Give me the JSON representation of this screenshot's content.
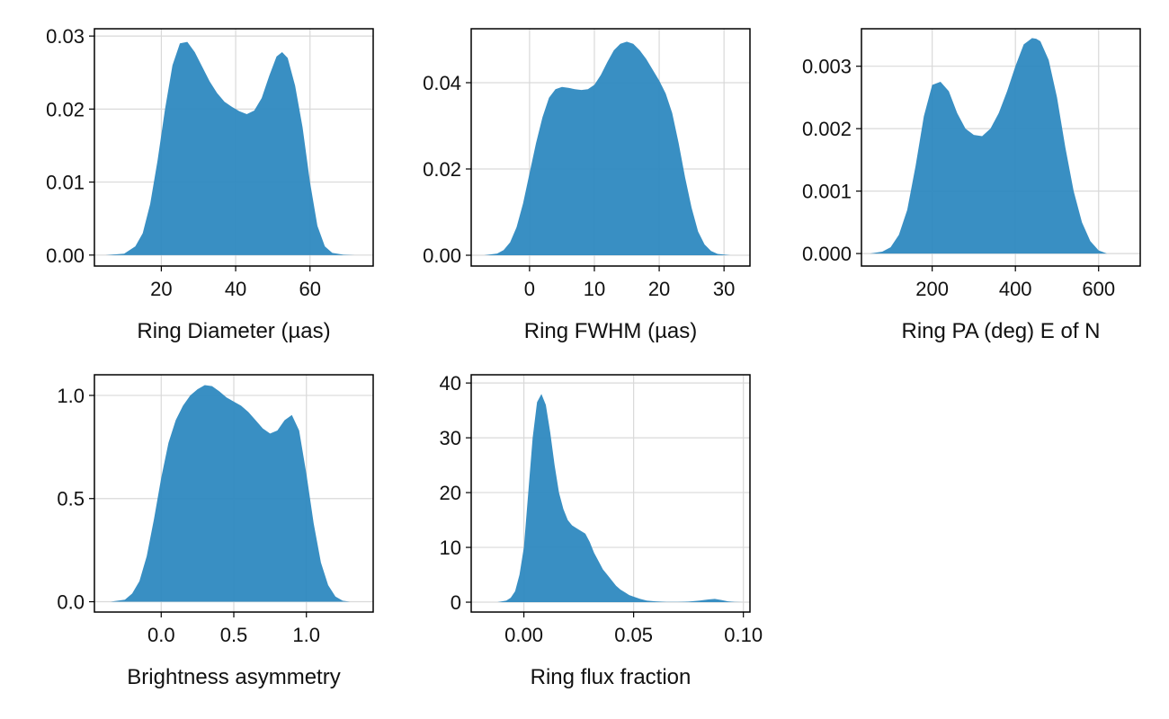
{
  "figure": {
    "fill_color": "#2a86be",
    "grid_color": "#d9d9d9"
  },
  "chart_data": [
    {
      "type": "area",
      "xlabel": "Ring Diameter (µas)",
      "xlim": [
        2,
        77
      ],
      "ylim": [
        -0.0015,
        0.031
      ],
      "xticks": [
        20,
        40,
        60
      ],
      "xtick_labels": [
        "20",
        "40",
        "60"
      ],
      "yticks": [
        0,
        0.01,
        0.02,
        0.03
      ],
      "ytick_labels": [
        "0.00",
        "0.01",
        "0.02",
        "0.03"
      ],
      "grid": true,
      "x": [
        5,
        10,
        13,
        15,
        17,
        19,
        21,
        23,
        25,
        27,
        29,
        31,
        33,
        35,
        37,
        39,
        41,
        43,
        45,
        47,
        49,
        51,
        52.5,
        54,
        56,
        58,
        60,
        62,
        64,
        66,
        69,
        72,
        75
      ],
      "y": [
        0,
        0.0002,
        0.0012,
        0.003,
        0.007,
        0.013,
        0.02,
        0.026,
        0.029,
        0.0292,
        0.0278,
        0.0258,
        0.0238,
        0.0222,
        0.021,
        0.0203,
        0.0197,
        0.0193,
        0.0198,
        0.0215,
        0.0245,
        0.0272,
        0.0278,
        0.027,
        0.0232,
        0.0175,
        0.01,
        0.004,
        0.0012,
        0.0003,
        5e-05,
        0,
        0
      ]
    },
    {
      "type": "area",
      "xlabel": "Ring FWHM (µas)",
      "xlim": [
        -9,
        34
      ],
      "ylim": [
        -0.0025,
        0.0525
      ],
      "xticks": [
        0,
        10,
        20,
        30
      ],
      "xtick_labels": [
        "0",
        "10",
        "20",
        "30"
      ],
      "yticks": [
        0,
        0.02,
        0.04
      ],
      "ytick_labels": [
        "0.00",
        "0.02",
        "0.04"
      ],
      "grid": true,
      "x": [
        -7,
        -5,
        -4,
        -3,
        -2,
        -1,
        0,
        1,
        2,
        3,
        4,
        5,
        6,
        7,
        8,
        9,
        10,
        11,
        12,
        13,
        14,
        15,
        16,
        17,
        18,
        19,
        20,
        21,
        22,
        23,
        24,
        25,
        26,
        27,
        28,
        29,
        31,
        33
      ],
      "y": [
        0,
        0.0004,
        0.0012,
        0.003,
        0.0065,
        0.012,
        0.019,
        0.026,
        0.032,
        0.0365,
        0.0385,
        0.039,
        0.0388,
        0.0385,
        0.0383,
        0.0385,
        0.0395,
        0.0418,
        0.0448,
        0.0475,
        0.049,
        0.0495,
        0.049,
        0.0475,
        0.0455,
        0.043,
        0.0405,
        0.0375,
        0.033,
        0.026,
        0.018,
        0.011,
        0.0055,
        0.0025,
        0.001,
        0.0003,
        0,
        0
      ]
    },
    {
      "type": "area",
      "xlabel": "Ring PA (deg) E of N",
      "xlim": [
        30,
        700
      ],
      "ylim": [
        -0.0002,
        0.0036
      ],
      "xticks": [
        200,
        400,
        600
      ],
      "xtick_labels": [
        "200",
        "400",
        "600"
      ],
      "yticks": [
        0,
        0.001,
        0.002,
        0.003
      ],
      "ytick_labels": [
        "0.000",
        "0.001",
        "0.002",
        "0.003"
      ],
      "grid": true,
      "x": [
        50,
        80,
        100,
        120,
        140,
        160,
        180,
        200,
        220,
        240,
        260,
        280,
        300,
        320,
        340,
        360,
        380,
        400,
        420,
        440,
        450,
        460,
        480,
        500,
        520,
        540,
        560,
        580,
        600,
        620,
        650,
        690
      ],
      "y": [
        0,
        3e-05,
        0.0001,
        0.0003,
        0.0007,
        0.0014,
        0.0022,
        0.0027,
        0.00275,
        0.0026,
        0.00225,
        0.002,
        0.0019,
        0.00188,
        0.002,
        0.00225,
        0.0026,
        0.003,
        0.00335,
        0.00345,
        0.00344,
        0.0034,
        0.0031,
        0.0025,
        0.0017,
        0.001,
        0.0005,
        0.0002,
        5e-05,
        0,
        0,
        0
      ]
    },
    {
      "type": "area",
      "xlabel": "Brightness asymmetry",
      "xlim": [
        -0.46,
        1.46
      ],
      "ylim": [
        -0.05,
        1.1
      ],
      "xticks": [
        0.0,
        0.5,
        1.0
      ],
      "xtick_labels": [
        "0.0",
        "0.5",
        "1.0"
      ],
      "yticks": [
        0.0,
        0.5,
        1.0
      ],
      "ytick_labels": [
        "0.0",
        "0.5",
        "1.0"
      ],
      "grid": true,
      "x": [
        -0.35,
        -0.25,
        -0.2,
        -0.15,
        -0.1,
        -0.05,
        0,
        0.05,
        0.1,
        0.15,
        0.2,
        0.25,
        0.3,
        0.35,
        0.4,
        0.45,
        0.5,
        0.55,
        0.6,
        0.65,
        0.7,
        0.75,
        0.8,
        0.85,
        0.9,
        0.95,
        1.0,
        1.05,
        1.1,
        1.15,
        1.2,
        1.25,
        1.3,
        1.4
      ],
      "y": [
        0,
        0.01,
        0.04,
        0.1,
        0.22,
        0.4,
        0.6,
        0.77,
        0.88,
        0.95,
        1.0,
        1.03,
        1.05,
        1.045,
        1.02,
        0.99,
        0.97,
        0.95,
        0.92,
        0.88,
        0.84,
        0.815,
        0.83,
        0.88,
        0.905,
        0.83,
        0.62,
        0.38,
        0.19,
        0.08,
        0.025,
        0.005,
        0,
        0
      ]
    },
    {
      "type": "area",
      "xlabel": "Ring flux fraction",
      "xlim": [
        -0.024,
        0.103
      ],
      "ylim": [
        -1.8,
        41.5
      ],
      "xticks": [
        0.0,
        0.05,
        0.1
      ],
      "xtick_labels": [
        "0.00",
        "0.05",
        "0.10"
      ],
      "yticks": [
        0,
        10,
        20,
        30,
        40
      ],
      "ytick_labels": [
        "0",
        "10",
        "20",
        "30",
        "40"
      ],
      "grid": true,
      "x": [
        -0.012,
        -0.008,
        -0.006,
        -0.004,
        -0.002,
        0,
        0.002,
        0.004,
        0.006,
        0.008,
        0.01,
        0.012,
        0.014,
        0.016,
        0.018,
        0.02,
        0.022,
        0.024,
        0.026,
        0.028,
        0.03,
        0.032,
        0.034,
        0.036,
        0.038,
        0.04,
        0.042,
        0.044,
        0.046,
        0.048,
        0.05,
        0.053,
        0.056,
        0.06,
        0.065,
        0.07,
        0.075,
        0.08,
        0.084,
        0.087,
        0.09,
        0.093,
        0.096,
        0.1
      ],
      "y": [
        0,
        0.3,
        0.8,
        2,
        5,
        10,
        20,
        30,
        36.5,
        38,
        36,
        31,
        25,
        20,
        17,
        15,
        14,
        13.5,
        13,
        12.5,
        11,
        9,
        7.5,
        6,
        5,
        4,
        3,
        2.3,
        1.8,
        1.3,
        1,
        0.6,
        0.3,
        0.15,
        0.05,
        0.05,
        0.1,
        0.3,
        0.5,
        0.6,
        0.4,
        0.15,
        0.05,
        0
      ]
    }
  ]
}
